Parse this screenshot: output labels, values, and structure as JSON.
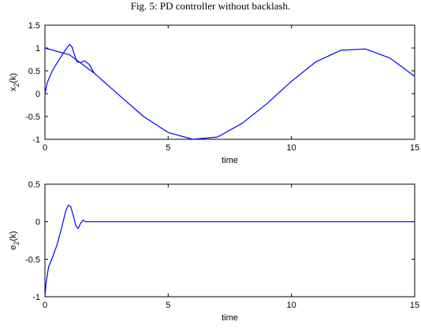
{
  "caption": "Fig. 5: PD controller without backlash.",
  "chart_data": [
    {
      "type": "line",
      "xlabel": "time",
      "ylabel": "x",
      "ylabel_sub": "2",
      "ylabel_tail": "(k)",
      "xlim": [
        0,
        15
      ],
      "ylim": [
        -1,
        1.5
      ],
      "xticks": [
        0,
        5,
        10,
        15
      ],
      "xtick_labels": [
        "0",
        "5",
        "10",
        "15"
      ],
      "yticks": [
        -1,
        -0.5,
        0,
        0.5,
        1,
        1.5
      ],
      "ytick_labels": [
        "-1",
        "-0.5",
        "0",
        "0.5",
        "1",
        "1.5"
      ],
      "grid": false,
      "line_color": "#0000ff",
      "series": [
        {
          "x": [
            0,
            1,
            2,
            3,
            4,
            5,
            6,
            7,
            8,
            9,
            10,
            11,
            12,
            13,
            14,
            15
          ],
          "y": [
            1,
            0.85,
            0.45,
            -0.03,
            -0.5,
            -0.85,
            -1,
            -0.95,
            -0.65,
            -0.22,
            0.27,
            0.7,
            0.95,
            0.98,
            0.78,
            0.38
          ]
        },
        {
          "x": [
            0,
            0.1,
            0.3,
            0.5,
            0.7,
            0.85,
            1.0,
            1.1,
            1.2,
            1.3,
            1.45,
            1.6,
            1.8,
            2.0
          ],
          "y": [
            0,
            0.25,
            0.5,
            0.68,
            0.85,
            0.97,
            1.08,
            1.02,
            0.85,
            0.7,
            0.68,
            0.72,
            0.64,
            0.45
          ]
        }
      ]
    },
    {
      "type": "line",
      "xlabel": "time",
      "ylabel": "e",
      "ylabel_sub": "2",
      "ylabel_tail": "(k)",
      "xlim": [
        0,
        15
      ],
      "ylim": [
        -1,
        0.5
      ],
      "xticks": [
        0,
        5,
        10,
        15
      ],
      "xtick_labels": [
        "0",
        "5",
        "10",
        "15"
      ],
      "yticks": [
        -1,
        -0.5,
        0,
        0.5
      ],
      "ytick_labels": [
        "-1",
        "-0.5",
        "0",
        "0.5"
      ],
      "grid": false,
      "line_color": "#0000ff",
      "series": [
        {
          "x": [
            0,
            0.05,
            0.15,
            0.3,
            0.5,
            0.7,
            0.85,
            0.95,
            1.05,
            1.15,
            1.25,
            1.35,
            1.45,
            1.55,
            1.65,
            1.8,
            2.0,
            15
          ],
          "y": [
            -1,
            -0.8,
            -0.6,
            -0.48,
            -0.3,
            -0.05,
            0.15,
            0.22,
            0.2,
            0.08,
            -0.05,
            -0.09,
            -0.02,
            0.02,
            0.0,
            0.0,
            0.0,
            0.0
          ]
        }
      ]
    }
  ]
}
